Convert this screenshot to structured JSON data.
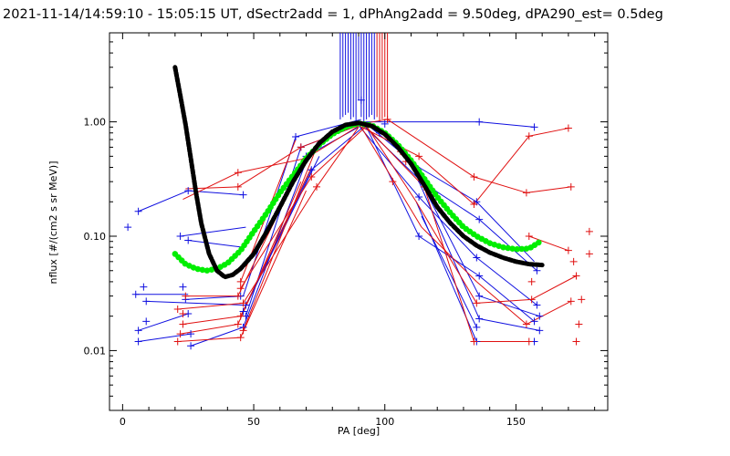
{
  "chart_data": {
    "type": "line",
    "title": "2021-11-14/14:59:10 - 15:05:15 UT, dSectr2add = 1, dPhAng2add = 9.50deg, dPA290_est=   0.5deg",
    "xlabel": "PA [deg]",
    "ylabel": "nflux [#/(cm2 s sr MeV)]",
    "xlim": [
      -5,
      185
    ],
    "ylim": [
      0.003,
      6.0
    ],
    "yscale": "log",
    "grid": false,
    "x_ticks": [
      0,
      50,
      100,
      150
    ],
    "x_tick_labels": [
      "0",
      "50",
      "100",
      "150"
    ],
    "y_ticks": [
      0.01,
      0.1,
      1.0
    ],
    "y_tick_labels": [
      "0.01",
      "0.10",
      "1.00"
    ],
    "colors": {
      "blue": "#1010e0",
      "red": "#e01010",
      "black": "#000000",
      "green": "#00ee00"
    },
    "series": [
      {
        "color": "black",
        "style": "thick-dashed",
        "x": [
          20,
          22,
          24,
          26,
          28,
          30,
          33,
          36,
          39,
          42,
          45,
          50,
          55,
          60,
          65,
          70,
          75,
          80,
          85,
          90,
          95,
          100,
          105,
          110,
          115,
          120,
          125,
          130,
          135,
          140,
          145,
          150,
          155,
          160
        ],
        "y": [
          3.0,
          1.7,
          0.95,
          0.48,
          0.24,
          0.13,
          0.07,
          0.05,
          0.044,
          0.046,
          0.052,
          0.07,
          0.11,
          0.18,
          0.3,
          0.46,
          0.65,
          0.82,
          0.94,
          0.98,
          0.92,
          0.78,
          0.6,
          0.43,
          0.28,
          0.18,
          0.13,
          0.1,
          0.083,
          0.072,
          0.065,
          0.06,
          0.057,
          0.056
        ]
      },
      {
        "color": "green",
        "style": "thick-dots",
        "x": [
          20,
          24,
          28,
          32,
          36,
          40,
          45,
          50,
          55,
          60,
          65,
          70,
          75,
          80,
          85,
          90,
          95,
          100,
          105,
          110,
          115,
          120,
          125,
          130,
          135,
          140,
          145,
          150,
          155,
          160
        ],
        "y": [
          0.07,
          0.057,
          0.052,
          0.05,
          0.052,
          0.058,
          0.075,
          0.11,
          0.16,
          0.24,
          0.34,
          0.48,
          0.63,
          0.78,
          0.9,
          0.97,
          0.93,
          0.8,
          0.63,
          0.46,
          0.32,
          0.22,
          0.16,
          0.12,
          0.1,
          0.087,
          0.08,
          0.077,
          0.078,
          0.092
        ]
      }
    ],
    "scatter_points": {
      "blue": [
        [
          2,
          0.12
        ],
        [
          6,
          0.165
        ],
        [
          5,
          0.031
        ],
        [
          6,
          0.015
        ],
        [
          6,
          0.012
        ],
        [
          8,
          0.036
        ],
        [
          9,
          0.027
        ],
        [
          9,
          0.018
        ],
        [
          22,
          0.1
        ],
        [
          25,
          0.092
        ],
        [
          24,
          0.028
        ],
        [
          25,
          0.021
        ],
        [
          26,
          0.014
        ],
        [
          26,
          0.011
        ],
        [
          23,
          0.036
        ],
        [
          25,
          0.25
        ],
        [
          46,
          0.23
        ],
        [
          45,
          0.03
        ],
        [
          46,
          0.016
        ],
        [
          47,
          0.02
        ],
        [
          47,
          0.025
        ],
        [
          46,
          0.022
        ],
        [
          66,
          0.74
        ],
        [
          68,
          0.6
        ],
        [
          70,
          0.5
        ],
        [
          72,
          0.38
        ],
        [
          91,
          1.55
        ],
        [
          96,
          0.9
        ],
        [
          98,
          0.8
        ],
        [
          100,
          0.96
        ],
        [
          112,
          0.4
        ],
        [
          114,
          0.3
        ],
        [
          113,
          0.22
        ],
        [
          113,
          0.1
        ],
        [
          136,
          1.0
        ],
        [
          135,
          0.2
        ],
        [
          136,
          0.14
        ],
        [
          135,
          0.065
        ],
        [
          136,
          0.045
        ],
        [
          136,
          0.03
        ],
        [
          136,
          0.019
        ],
        [
          135,
          0.012
        ],
        [
          135,
          0.016
        ],
        [
          157,
          0.9
        ],
        [
          158,
          0.05
        ],
        [
          158,
          0.025
        ],
        [
          157,
          0.018
        ],
        [
          159,
          0.015
        ],
        [
          157,
          0.012
        ],
        [
          159,
          0.02
        ]
      ],
      "red": [
        [
          21,
          0.012
        ],
        [
          22,
          0.014
        ],
        [
          23,
          0.017
        ],
        [
          21,
          0.023
        ],
        [
          24,
          0.03
        ],
        [
          23,
          0.021
        ],
        [
          44,
          0.36
        ],
        [
          44,
          0.27
        ],
        [
          45,
          0.035
        ],
        [
          44,
          0.03
        ],
        [
          46,
          0.026
        ],
        [
          45,
          0.02
        ],
        [
          44,
          0.017
        ],
        [
          46,
          0.015
        ],
        [
          45,
          0.013
        ],
        [
          45,
          0.04
        ],
        [
          68,
          0.6
        ],
        [
          70,
          0.48
        ],
        [
          72,
          0.33
        ],
        [
          74,
          0.27
        ],
        [
          101,
          1.05
        ],
        [
          103,
          0.3
        ],
        [
          106,
          0.55
        ],
        [
          108,
          0.45
        ],
        [
          115,
          0.27
        ],
        [
          113,
          0.5
        ],
        [
          134,
          0.33
        ],
        [
          134,
          0.19
        ],
        [
          134,
          0.012
        ],
        [
          135,
          0.026
        ],
        [
          154,
          0.24
        ],
        [
          155,
          0.75
        ],
        [
          155,
          0.1
        ],
        [
          156,
          0.04
        ],
        [
          156,
          0.028
        ],
        [
          154,
          0.017
        ],
        [
          155,
          0.012
        ],
        [
          170,
          0.88
        ],
        [
          171,
          0.27
        ],
        [
          170,
          0.075
        ],
        [
          172,
          0.06
        ],
        [
          173,
          0.045
        ],
        [
          171,
          0.027
        ],
        [
          174,
          0.017
        ],
        [
          173,
          0.012
        ],
        [
          175,
          0.028
        ],
        [
          178,
          0.11
        ],
        [
          178,
          0.07
        ]
      ]
    },
    "line_segments": {
      "blue": [
        [
          2,
          0.12,
          2,
          0.12
        ],
        [
          6,
          0.165,
          25,
          0.25
        ],
        [
          25,
          0.25,
          46,
          0.23
        ],
        [
          5,
          0.031,
          25,
          0.031
        ],
        [
          6,
          0.015,
          25,
          0.021
        ],
        [
          6,
          0.012,
          26,
          0.014
        ],
        [
          9,
          0.027,
          46,
          0.025
        ],
        [
          22,
          0.1,
          47,
          0.12
        ],
        [
          25,
          0.092,
          46,
          0.08
        ],
        [
          24,
          0.028,
          46,
          0.03
        ],
        [
          26,
          0.011,
          46,
          0.016
        ],
        [
          46,
          0.03,
          66,
          0.74
        ],
        [
          46,
          0.016,
          70,
          0.45
        ],
        [
          47,
          0.02,
          68,
          0.6
        ],
        [
          47,
          0.025,
          72,
          0.38
        ],
        [
          46,
          0.022,
          75,
          0.5
        ],
        [
          66,
          0.74,
          91,
          1.05
        ],
        [
          68,
          0.6,
          92,
          0.97
        ],
        [
          70,
          0.5,
          90,
          0.9
        ],
        [
          72,
          0.38,
          93,
          0.95
        ],
        [
          92,
          1.0,
          136,
          1.0
        ],
        [
          136,
          1.0,
          157,
          0.9
        ],
        [
          92,
          1.0,
          113,
          0.4
        ],
        [
          91,
          0.97,
          114,
          0.3
        ],
        [
          90,
          0.93,
          113,
          0.22
        ],
        [
          93,
          0.9,
          113,
          0.1
        ],
        [
          113,
          0.4,
          135,
          0.2
        ],
        [
          114,
          0.3,
          136,
          0.14
        ],
        [
          113,
          0.22,
          135,
          0.065
        ],
        [
          113,
          0.1,
          136,
          0.045
        ],
        [
          112,
          0.36,
          136,
          0.03
        ],
        [
          113,
          0.3,
          136,
          0.019
        ],
        [
          112,
          0.2,
          135,
          0.012
        ],
        [
          114,
          0.15,
          135,
          0.016
        ],
        [
          135,
          0.2,
          157,
          0.06
        ],
        [
          136,
          0.14,
          158,
          0.05
        ],
        [
          135,
          0.065,
          158,
          0.025
        ],
        [
          136,
          0.045,
          157,
          0.018
        ],
        [
          136,
          0.03,
          159,
          0.02
        ],
        [
          135,
          0.012,
          157,
          0.012
        ],
        [
          136,
          0.019,
          159,
          0.015
        ]
      ],
      "red": [
        [
          21,
          0.012,
          45,
          0.013
        ],
        [
          22,
          0.014,
          44,
          0.017
        ],
        [
          23,
          0.017,
          45,
          0.02
        ],
        [
          21,
          0.023,
          46,
          0.026
        ],
        [
          24,
          0.03,
          44,
          0.03
        ],
        [
          23,
          0.21,
          44,
          0.36
        ],
        [
          24,
          0.26,
          44,
          0.27
        ],
        [
          44,
          0.36,
          70,
          0.48
        ],
        [
          44,
          0.27,
          68,
          0.6
        ],
        [
          45,
          0.035,
          72,
          0.33
        ],
        [
          44,
          0.03,
          70,
          0.5
        ],
        [
          46,
          0.026,
          74,
          0.27
        ],
        [
          45,
          0.02,
          72,
          0.4
        ],
        [
          44,
          0.017,
          68,
          0.3
        ],
        [
          46,
          0.015,
          74,
          0.6
        ],
        [
          45,
          0.013,
          70,
          0.25
        ],
        [
          45,
          0.04,
          66,
          0.7
        ],
        [
          68,
          0.6,
          92,
          0.97
        ],
        [
          70,
          0.48,
          91,
          0.95
        ],
        [
          72,
          0.33,
          93,
          0.92
        ],
        [
          74,
          0.27,
          90,
          0.9
        ],
        [
          91,
          0.96,
          101,
          1.05
        ],
        [
          90,
          0.93,
          113,
          0.5
        ],
        [
          92,
          0.95,
          115,
          0.27
        ],
        [
          93,
          0.92,
          112,
          0.2
        ],
        [
          91,
          0.9,
          114,
          0.12
        ],
        [
          101,
          1.05,
          134,
          0.33
        ],
        [
          113,
          0.5,
          134,
          0.19
        ],
        [
          115,
          0.27,
          134,
          0.012
        ],
        [
          112,
          0.2,
          135,
          0.026
        ],
        [
          114,
          0.12,
          135,
          0.04
        ],
        [
          134,
          0.33,
          154,
          0.24
        ],
        [
          154,
          0.24,
          171,
          0.27
        ],
        [
          134,
          0.19,
          155,
          0.75
        ],
        [
          155,
          0.75,
          170,
          0.88
        ],
        [
          134,
          0.012,
          155,
          0.012
        ],
        [
          135,
          0.026,
          156,
          0.028
        ],
        [
          135,
          0.04,
          154,
          0.017
        ],
        [
          156,
          0.028,
          173,
          0.045
        ],
        [
          154,
          0.017,
          171,
          0.027
        ],
        [
          155,
          0.1,
          170,
          0.075
        ]
      ]
    },
    "vertical_lines": {
      "blue": [
        83,
        84,
        85,
        86,
        87,
        88,
        89,
        90,
        91,
        92,
        93,
        94,
        95,
        96
      ],
      "red": [
        97,
        98,
        99,
        100,
        101
      ],
      "top_y": 6.0,
      "bottom_y": [
        1.05,
        1.1,
        1.15,
        1.2,
        1.05,
        1.1,
        1.0,
        1.55,
        1.1,
        1.0,
        1.05,
        1.1,
        1.15,
        1.05,
        1.1,
        1.0,
        1.05,
        1.1,
        1.0
      ]
    }
  }
}
